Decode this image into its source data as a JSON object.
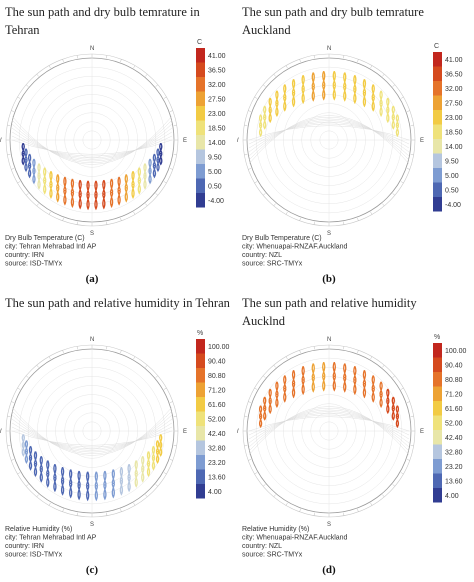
{
  "page": {
    "background": "#ffffff"
  },
  "chart_data": [
    {
      "type": "sun-path diagram",
      "title": "The sun path and dry bulb temrature in Tehran",
      "legend_unit": "C",
      "legend_ticks": [
        "41.00",
        "36.50",
        "32.00",
        "27.50",
        "23.00",
        "18.50",
        "14.00",
        "9.50",
        "5.00",
        "0.50",
        "-4.00"
      ],
      "colors": [
        "#c2271e",
        "#d54a1e",
        "#e5732a",
        "#eda234",
        "#f2cb44",
        "#efe27a",
        "#e8e6a8",
        "#b5c6df",
        "#7e9cd2",
        "#4e68b3",
        "#313d92"
      ],
      "compass": [
        "N",
        "E",
        "S",
        "W"
      ],
      "variable": "Dry Bulb Temperature (C)",
      "city": "city: Tehran Mehrabad Intl AP",
      "country": "country: IRN",
      "source": "source: ISD-TMYx",
      "panel_label": "(a)",
      "loops_level": [
        0.05,
        0.08,
        0.15,
        0.25,
        0.4,
        0.52,
        0.62,
        0.7,
        0.78,
        0.85,
        0.9,
        0.93,
        0.93,
        0.9,
        0.85,
        0.78,
        0.7,
        0.62,
        0.52,
        0.4,
        0.25,
        0.15,
        0.08,
        0.05
      ]
    },
    {
      "type": "sun-path diagram",
      "title": "The sun path and dry bulb temrature Auckland",
      "legend_unit": "C",
      "legend_ticks": [
        "41.00",
        "36.50",
        "32.00",
        "27.50",
        "23.00",
        "18.50",
        "14.00",
        "9.50",
        "5.00",
        "0.50",
        "-4.00"
      ],
      "colors": [
        "#c2271e",
        "#d54a1e",
        "#e5732a",
        "#eda234",
        "#f2cb44",
        "#efe27a",
        "#e8e6a8",
        "#b5c6df",
        "#7e9cd2",
        "#4e68b3",
        "#313d92"
      ],
      "compass": [
        "N",
        "E",
        "S",
        "W"
      ],
      "variable": "Dry Bulb Temperature (C)",
      "city": "city: Whenuapai-RNZAF.Auckland",
      "country": "country: NZL",
      "source": "source: SRC-TMYx",
      "panel_label": "(b)",
      "loops_level": [
        0.55,
        0.55,
        0.58,
        0.6,
        0.62,
        0.64,
        0.65,
        0.66,
        0.66,
        0.65,
        0.64,
        0.62,
        0.6,
        0.58,
        0.55,
        0.52,
        0.5,
        0.5
      ]
    },
    {
      "type": "sun-path diagram",
      "title": "The sun path and relative humidity in Tehran",
      "legend_unit": "%",
      "legend_ticks": [
        "100.00",
        "90.40",
        "80.80",
        "71.20",
        "61.60",
        "52.00",
        "42.40",
        "32.80",
        "23.20",
        "13.60",
        "4.00"
      ],
      "colors": [
        "#c2271e",
        "#d54a1e",
        "#e5732a",
        "#eda234",
        "#f2cb44",
        "#efe27a",
        "#e8e6a8",
        "#b5c6df",
        "#7e9cd2",
        "#4e68b3",
        "#313d92"
      ],
      "compass": [
        "N",
        "E",
        "S",
        "W"
      ],
      "variable": "Relative Humidity (%)",
      "city": "city: Tehran Mehrabad Intl AP",
      "country": "country: IRN",
      "source": "source: ISD-TMYx",
      "panel_label": "(c)",
      "loops_level": [
        0.3,
        0.2,
        0.15,
        0.12,
        0.1,
        0.1,
        0.1,
        0.1,
        0.1,
        0.12,
        0.15,
        0.2,
        0.2,
        0.25,
        0.3,
        0.35,
        0.4,
        0.45,
        0.5,
        0.55,
        0.58,
        0.62
      ]
    },
    {
      "type": "sun-path diagram",
      "title": "The sun path and relative humidity Aucklnd",
      "legend_unit": "%",
      "legend_ticks": [
        "100.00",
        "90.40",
        "80.80",
        "71.20",
        "61.60",
        "52.00",
        "42.40",
        "32.80",
        "23.20",
        "13.60",
        "4.00"
      ],
      "colors": [
        "#c2271e",
        "#d54a1e",
        "#e5732a",
        "#eda234",
        "#f2cb44",
        "#efe27a",
        "#e8e6a8",
        "#b5c6df",
        "#7e9cd2",
        "#4e68b3",
        "#313d92"
      ],
      "compass": [
        "N",
        "E",
        "S",
        "W"
      ],
      "variable": "Relative Humidity (%)",
      "city": "city: Whenuapai-RNZAF.Auckland",
      "country": "country: NZL",
      "source": "source: SRC-TMYx",
      "panel_label": "(d)",
      "loops_level": [
        0.85,
        0.85,
        0.82,
        0.8,
        0.78,
        0.78,
        0.76,
        0.75,
        0.75,
        0.76,
        0.78,
        0.8,
        0.82,
        0.84,
        0.85,
        0.86,
        0.86,
        0.86
      ]
    }
  ]
}
